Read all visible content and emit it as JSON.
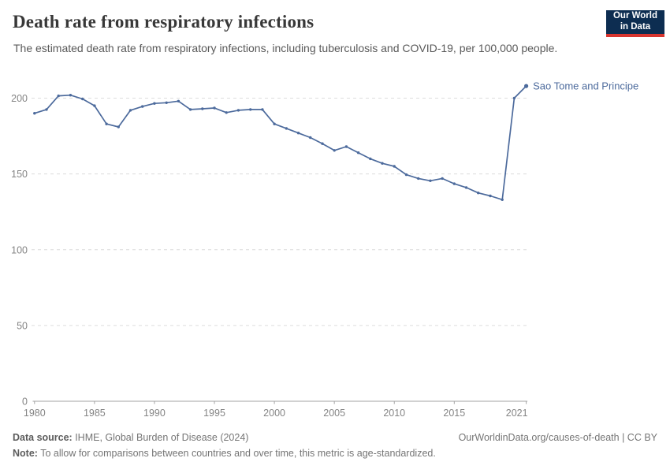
{
  "header": {
    "title": "Death rate from respiratory infections",
    "subtitle": "The estimated death rate from respiratory infections, including tuberculosis and COVID-19, per 100,000 people.",
    "logo": {
      "line1": "Our World",
      "line2": "in Data"
    }
  },
  "chart_data": {
    "type": "line",
    "title": "Death rate from respiratory infections",
    "xlabel": "",
    "ylabel": "",
    "x": [
      1980,
      1981,
      1982,
      1983,
      1984,
      1985,
      1986,
      1987,
      1988,
      1989,
      1990,
      1991,
      1992,
      1993,
      1994,
      1995,
      1996,
      1997,
      1998,
      1999,
      2000,
      2001,
      2002,
      2003,
      2004,
      2005,
      2006,
      2007,
      2008,
      2009,
      2010,
      2011,
      2012,
      2013,
      2014,
      2015,
      2016,
      2017,
      2018,
      2019,
      2020,
      2021
    ],
    "series": [
      {
        "name": "Sao Tome and Principe",
        "values": [
          190,
          192.5,
          201.5,
          202,
          199.5,
          195,
          183,
          181,
          192,
          194.5,
          196.5,
          197,
          198,
          192.5,
          193,
          193.5,
          190.5,
          192,
          192.5,
          192.5,
          183,
          180,
          177,
          174,
          170,
          165.5,
          168,
          164,
          160,
          157,
          155,
          149.5,
          147,
          145.5,
          147,
          143.5,
          141,
          137.5,
          135.5,
          133,
          200,
          208
        ]
      }
    ],
    "entity_label": "Sao Tome and Principe",
    "ylim": [
      0,
      210
    ],
    "yticks": [
      0,
      50,
      100,
      150,
      200
    ],
    "xticks": [
      1980,
      1985,
      1990,
      1995,
      2000,
      2005,
      2010,
      2015,
      2021
    ],
    "grid": "horizontal-dashed",
    "legend_position": "end-of-line-label",
    "line_color": "#4c6a9c"
  },
  "colors": {
    "line": "#4c6a9c",
    "entity_label": "#4c6a9c",
    "gridline": "#dcdcdc",
    "axis": "#a3a3a3",
    "tick_label": "#848484",
    "title": "#383838",
    "subtitle": "#595959",
    "footer": "#757575",
    "logo_bg": "#0d2d51",
    "logo_red": "#d8352f"
  },
  "footer": {
    "data_source_label": "Data source:",
    "data_source_text": " IHME, Global Burden of Disease (2024)",
    "credit": "OurWorldinData.org/causes-of-death | CC BY",
    "note_label": "Note:",
    "note_text": " To allow for comparisons between countries and over time, this metric is age-standardized."
  }
}
